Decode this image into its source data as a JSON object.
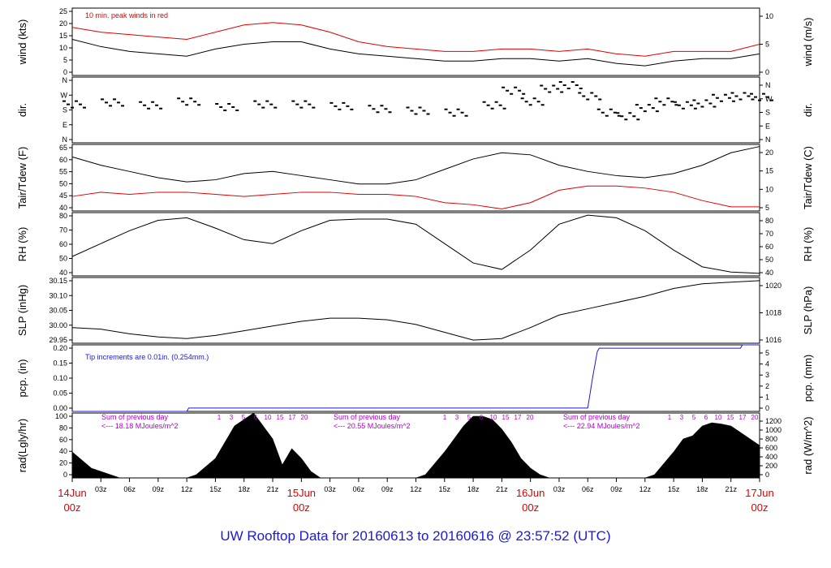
{
  "title": "UW Rooftop Data for 20160613  to  20160616 @ 23:57:52  (UTC)",
  "colors": {
    "black": "#000000",
    "red": "#e00000",
    "blue": "#1a1ad6",
    "purple": "#b000d0",
    "footer_blue": "#1a1ad6"
  },
  "x_axis": {
    "hours_ticks": [
      "03z",
      "06z",
      "09z",
      "12z",
      "15z",
      "18z",
      "21z",
      "03z",
      "06z",
      "09z",
      "12z",
      "15z",
      "18z",
      "21z",
      "03z",
      "06z",
      "09z",
      "12z",
      "15z",
      "18z",
      "21z"
    ],
    "day_labels": [
      {
        "date": "14Jun",
        "time": "00z"
      },
      {
        "date": "15Jun",
        "time": "00z"
      },
      {
        "date": "16Jun",
        "time": "00z"
      },
      {
        "date": "17Jun",
        "time": "00z"
      }
    ]
  },
  "chart_data": [
    {
      "type": "line",
      "name": "wind",
      "ylabel_left": "wind (kts)",
      "ylabel_right": "wind (m/s)",
      "yticks_left": [
        "0",
        "5",
        "10",
        "15",
        "20",
        "25"
      ],
      "yticks_right": [
        "0",
        "5",
        "10"
      ],
      "ylim": [
        0,
        28
      ],
      "annotation": "10 min. peak winds in red",
      "series": [
        {
          "color": "#000000",
          "x": [
            0,
            3,
            6,
            9,
            12,
            15,
            18,
            21,
            24,
            27,
            30,
            33,
            36,
            39,
            42,
            45,
            48,
            51,
            54,
            57,
            60,
            63,
            66,
            69,
            72
          ],
          "y": [
            15,
            12,
            10,
            9,
            8,
            11,
            13,
            14,
            14,
            11,
            9,
            8,
            7,
            6,
            6,
            7,
            7,
            6,
            7,
            5,
            4,
            6,
            7,
            7,
            9
          ]
        },
        {
          "color": "#e00000",
          "x": [
            0,
            3,
            6,
            9,
            12,
            15,
            18,
            21,
            24,
            27,
            30,
            33,
            36,
            39,
            42,
            45,
            48,
            51,
            54,
            57,
            60,
            63,
            66,
            69,
            72
          ],
          "y": [
            20,
            18,
            17,
            16,
            15,
            18,
            21,
            22,
            21,
            18,
            14,
            12,
            11,
            10,
            10,
            11,
            11,
            10,
            11,
            9,
            8,
            10,
            10,
            10,
            13
          ]
        }
      ]
    },
    {
      "type": "scatter",
      "name": "dir",
      "ylabel_left": "dir.",
      "ylabel_right": "dir.",
      "yticks_left": [
        "N",
        "E",
        "S",
        "W",
        "N"
      ],
      "yticks_right": [
        "N",
        "E",
        "S",
        "W",
        "N"
      ],
      "ylim": [
        0,
        360
      ],
      "series": [
        {
          "color": "#000000",
          "x": [
            0,
            4,
            8,
            12,
            16,
            20,
            24,
            28,
            32,
            36,
            40,
            44,
            46,
            48,
            50,
            52,
            54,
            56,
            58,
            60,
            62,
            64,
            66,
            68,
            70,
            72
          ],
          "y": [
            215,
            225,
            210,
            230,
            200,
            215,
            215,
            205,
            190,
            180,
            170,
            210,
            290,
            230,
            300,
            320,
            260,
            170,
            150,
            195,
            230,
            210,
            220,
            250,
            260,
            255
          ]
        }
      ]
    },
    {
      "type": "line",
      "name": "temp",
      "ylabel_left": "Tair/Tdew (F)",
      "ylabel_right": "Tair/Tdew (C)",
      "yticks_left": [
        "40",
        "45",
        "50",
        "55",
        "60",
        "65"
      ],
      "yticks_right": [
        "5",
        "10",
        "15",
        "20"
      ],
      "ylim": [
        36,
        68
      ],
      "series": [
        {
          "color": "#000000",
          "x": [
            0,
            3,
            6,
            9,
            12,
            15,
            18,
            21,
            24,
            27,
            30,
            33,
            36,
            39,
            42,
            45,
            48,
            51,
            54,
            57,
            60,
            63,
            66,
            69,
            72
          ],
          "y": [
            62,
            58,
            55,
            52,
            50,
            51,
            54,
            55,
            53,
            51,
            49,
            49,
            51,
            56,
            61,
            64,
            63,
            58,
            55,
            53,
            52,
            54,
            58,
            64,
            67
          ]
        },
        {
          "color": "#e00000",
          "x": [
            0,
            3,
            6,
            9,
            12,
            15,
            18,
            21,
            24,
            27,
            30,
            33,
            36,
            39,
            42,
            45,
            48,
            51,
            54,
            57,
            60,
            63,
            66,
            69,
            72
          ],
          "y": [
            43,
            45,
            44,
            45,
            45,
            44,
            43,
            44,
            45,
            45,
            44,
            44,
            43,
            40,
            39,
            37,
            40,
            46,
            48,
            48,
            47,
            45,
            41,
            38,
            38
          ]
        }
      ]
    },
    {
      "type": "line",
      "name": "rh",
      "ylabel_left": "RH (%)",
      "ylabel_right": "RH (%)",
      "yticks_left": [
        "40",
        "50",
        "60",
        "70",
        "80"
      ],
      "yticks_right": [
        "40",
        "50",
        "60",
        "70",
        "80"
      ],
      "ylim": [
        35,
        84
      ],
      "series": [
        {
          "color": "#000000",
          "x": [
            0,
            3,
            6,
            9,
            12,
            15,
            18,
            21,
            24,
            27,
            30,
            33,
            36,
            39,
            42,
            45,
            48,
            51,
            54,
            57,
            60,
            63,
            66,
            69,
            72
          ],
          "y": [
            50,
            60,
            70,
            78,
            80,
            72,
            63,
            60,
            70,
            78,
            79,
            79,
            75,
            60,
            45,
            40,
            55,
            75,
            82,
            80,
            70,
            55,
            42,
            38,
            37
          ]
        }
      ]
    },
    {
      "type": "line",
      "name": "slp",
      "ylabel_left": "SLP (inHg)",
      "ylabel_right": "SLP (hPa)",
      "yticks_left": [
        "29.95",
        "30.00",
        "30.05",
        "30.10",
        "30.15"
      ],
      "yticks_right": [
        "1016",
        "1018",
        "1020"
      ],
      "ylim": [
        29.95,
        30.16
      ],
      "series": [
        {
          "color": "#000000",
          "x": [
            0,
            3,
            6,
            9,
            12,
            15,
            18,
            21,
            24,
            27,
            30,
            33,
            36,
            39,
            42,
            45,
            48,
            51,
            54,
            57,
            60,
            63,
            66,
            69,
            72
          ],
          "y": [
            30.0,
            29.995,
            29.98,
            29.97,
            29.965,
            29.975,
            29.99,
            30.005,
            30.02,
            30.03,
            30.03,
            30.025,
            30.01,
            29.985,
            29.96,
            29.965,
            30.0,
            30.04,
            30.06,
            30.08,
            30.1,
            30.125,
            30.14,
            30.145,
            30.15
          ]
        }
      ]
    },
    {
      "type": "line",
      "name": "pcp",
      "ylabel_left": "pcp. (in)",
      "ylabel_right": "pcp. (mm)",
      "yticks_left": [
        "0.00",
        "0.05",
        "0.10",
        "0.15",
        "0.20"
      ],
      "yticks_right": [
        "0",
        "1",
        "2",
        "3",
        "4",
        "5"
      ],
      "ylim": [
        0,
        0.2
      ],
      "annotation": "Tip increments are 0.01in. (0.254mm.)",
      "series": [
        {
          "color": "#1a1ad6",
          "x": [
            0,
            12,
            12.2,
            54,
            54.5,
            55,
            55.2,
            70,
            70.2,
            72
          ],
          "y": [
            0,
            0,
            0.01,
            0.01,
            0.1,
            0.18,
            0.19,
            0.19,
            0.2,
            0.2
          ]
        }
      ]
    },
    {
      "type": "area",
      "name": "rad",
      "ylabel_left": "rad(Lgly/hr)",
      "ylabel_right": "rad (W/m^2)",
      "yticks_left": [
        "0",
        "20",
        "40",
        "60",
        "80",
        "100"
      ],
      "yticks_right": [
        "0",
        "200",
        "400",
        "600",
        "800",
        "1000",
        "1200"
      ],
      "ylim": [
        0,
        100
      ],
      "daily_sums": [
        "<--- 18.18 MJoules/m^2",
        "<--- 20.55 MJoules/m^2",
        "<--- 22.94 MJoules/m^2"
      ],
      "sum_label": "Sum of previous day",
      "hour_labels": [
        "1",
        "3",
        "5",
        "6",
        "10",
        "15",
        "17",
        "20"
      ],
      "series": [
        {
          "color": "#000000",
          "x": [
            0,
            2,
            4,
            5,
            12,
            13,
            15,
            17,
            18,
            19,
            20,
            21,
            22,
            23,
            24,
            25,
            26,
            36,
            37,
            39,
            41,
            42,
            43,
            44,
            45,
            46,
            47,
            48,
            49,
            50,
            60,
            61,
            63,
            64,
            65,
            66,
            67,
            68,
            69,
            70,
            71,
            72
          ],
          "y": [
            40,
            15,
            5,
            0,
            0,
            5,
            30,
            80,
            90,
            100,
            80,
            60,
            20,
            45,
            30,
            10,
            0,
            0,
            5,
            40,
            80,
            95,
            95,
            90,
            75,
            55,
            30,
            15,
            5,
            0,
            0,
            5,
            40,
            60,
            65,
            80,
            85,
            83,
            80,
            70,
            60,
            50
          ]
        }
      ]
    }
  ]
}
